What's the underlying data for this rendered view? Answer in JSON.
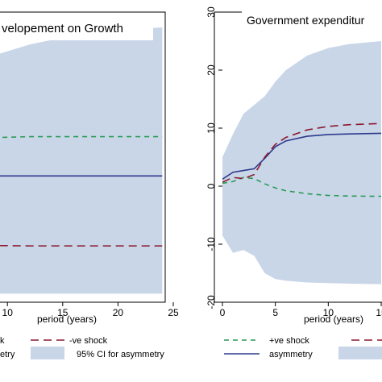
{
  "chart_data": [
    {
      "type": "line",
      "title": "velopement on Growth",
      "xlabel": "period (years)",
      "xlim": [
        0,
        25
      ],
      "ylim": [
        -6,
        11
      ],
      "x_ticks": [
        10,
        15,
        20,
        25
      ],
      "grid": false,
      "series": [
        {
          "name": "95% CI for asymmetry",
          "kind": "band",
          "color": "#c9d6e8",
          "x": [
            0,
            3,
            6,
            9,
            12,
            15,
            18,
            21,
            24
          ],
          "lower": [
            -5.5,
            -5.5,
            -5.5,
            -5.5,
            -5.5,
            -5.5,
            -5.5,
            -5.5,
            -5.5
          ],
          "upper": [
            5.2,
            6.5,
            7.6,
            8.5,
            9.1,
            9.5,
            9.8,
            10.0,
            10.1
          ]
        },
        {
          "name": "+ve shock",
          "kind": "line",
          "dash": "dashed",
          "color": "#2a9a55",
          "x": [
            0,
            3,
            6,
            9,
            12,
            15,
            20,
            24
          ],
          "y": [
            3.0,
            3.3,
            3.55,
            3.65,
            3.7,
            3.7,
            3.7,
            3.7
          ]
        },
        {
          "name": "asymmetry",
          "kind": "line",
          "dash": "solid",
          "color": "#2e3a8c",
          "x": [
            0,
            3,
            6,
            9,
            12,
            15,
            20,
            24
          ],
          "y": [
            1.25,
            1.35,
            1.38,
            1.4,
            1.4,
            1.4,
            1.4,
            1.4
          ]
        },
        {
          "name": "-ve shock",
          "kind": "line",
          "dash": "longdash",
          "color": "#8b1a2e",
          "x": [
            0,
            3,
            6,
            9,
            12,
            15,
            20,
            24
          ],
          "y": [
            -2.3,
            -2.5,
            -2.62,
            -2.68,
            -2.7,
            -2.7,
            -2.7,
            -2.7
          ]
        }
      ]
    },
    {
      "type": "line",
      "title": "Government expenditur",
      "xlabel": "period (years)",
      "xlim": [
        0,
        15
      ],
      "ylim": [
        -20,
        30
      ],
      "y_ticks": [
        -20,
        -10,
        0,
        10,
        20,
        30
      ],
      "x_ticks": [
        0,
        5,
        10,
        15
      ],
      "grid": false,
      "series": [
        {
          "name": "95% CI for asymmetry",
          "kind": "band",
          "color": "#c9d6e8",
          "x": [
            0,
            1,
            2,
            3,
            4,
            5,
            6,
            8,
            10,
            12,
            15
          ],
          "lower": [
            -8.5,
            -11.5,
            -11.0,
            -12.0,
            -15.0,
            -16.0,
            -16.3,
            -16.6,
            -16.7,
            -16.8,
            -16.9
          ],
          "upper": [
            5.0,
            9.0,
            12.5,
            14.0,
            15.5,
            18.0,
            20.0,
            22.5,
            23.8,
            24.5,
            25.0
          ]
        },
        {
          "name": "+ve shock",
          "kind": "line",
          "dash": "dashed",
          "color": "#2a9a55",
          "x": [
            0,
            1,
            2,
            3,
            4,
            5,
            6,
            8,
            10,
            12,
            15
          ],
          "y": [
            0.5,
            0.8,
            1.5,
            1.3,
            0.4,
            -0.3,
            -0.8,
            -1.3,
            -1.6,
            -1.7,
            -1.75
          ]
        },
        {
          "name": "asymmetry",
          "kind": "line",
          "dash": "solid",
          "color": "#2e3a8c",
          "x": [
            0,
            1,
            2,
            3,
            4,
            5,
            6,
            8,
            10,
            12,
            15
          ],
          "y": [
            1.2,
            2.4,
            2.7,
            3.0,
            4.8,
            6.8,
            7.8,
            8.6,
            8.9,
            9.0,
            9.1
          ]
        },
        {
          "name": "-ve shock",
          "kind": "line",
          "dash": "longdash",
          "color": "#8b1a2e",
          "x": [
            0,
            1,
            2,
            3,
            4,
            5,
            6,
            8,
            10,
            12,
            15
          ],
          "y": [
            0.7,
            1.5,
            1.3,
            2.0,
            5.0,
            7.2,
            8.4,
            9.7,
            10.3,
            10.6,
            10.8
          ]
        }
      ]
    }
  ],
  "legend_left": {
    "shock_label": "k",
    "neg_shock_label": "-ve shock",
    "asym_label": "etry",
    "ci_label": "95% CI for asymmetry"
  },
  "legend_right": {
    "pos_shock_label": "+ve shock",
    "asym_label": "asymmetry"
  }
}
